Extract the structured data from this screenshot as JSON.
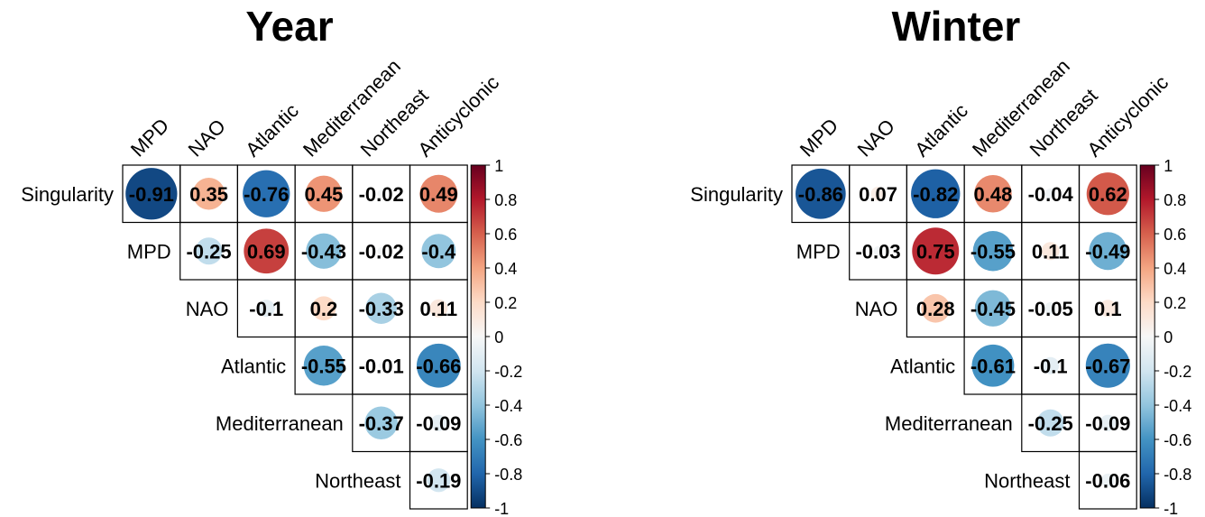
{
  "chart_data": [
    {
      "type": "heatmap",
      "title": "Year",
      "row_labels": [
        "Singularity",
        "MPD",
        "NAO",
        "Atlantic",
        "Mediterranean",
        "Northeast"
      ],
      "col_labels": [
        "MPD",
        "NAO",
        "Atlantic",
        "Mediterranean",
        "Northeast",
        "Anticyclonic"
      ],
      "values": [
        [
          -0.91,
          0.35,
          -0.76,
          0.45,
          -0.02,
          0.49
        ],
        [
          null,
          -0.25,
          0.69,
          -0.43,
          -0.02,
          -0.4
        ],
        [
          null,
          null,
          -0.1,
          0.2,
          -0.33,
          0.11
        ],
        [
          null,
          null,
          null,
          -0.55,
          -0.01,
          -0.66
        ],
        [
          null,
          null,
          null,
          null,
          -0.37,
          -0.09
        ],
        [
          null,
          null,
          null,
          null,
          null,
          -0.19
        ]
      ],
      "legend_ticks": [
        "1",
        "0.8",
        "0.6",
        "0.4",
        "0.2",
        "0",
        "-0.2",
        "-0.4",
        "-0.6",
        "-0.8",
        "-1"
      ],
      "value_range": [
        -1,
        1
      ]
    },
    {
      "type": "heatmap",
      "title": "Winter",
      "row_labels": [
        "Singularity",
        "MPD",
        "NAO",
        "Atlantic",
        "Mediterranean",
        "Northeast"
      ],
      "col_labels": [
        "MPD",
        "NAO",
        "Atlantic",
        "Mediterranean",
        "Northeast",
        "Anticyclonic"
      ],
      "values": [
        [
          -0.86,
          0.07,
          -0.82,
          0.48,
          -0.04,
          0.62
        ],
        [
          null,
          -0.03,
          0.75,
          -0.55,
          0.11,
          -0.49
        ],
        [
          null,
          null,
          0.28,
          -0.45,
          -0.05,
          0.1
        ],
        [
          null,
          null,
          null,
          -0.61,
          -0.1,
          -0.67
        ],
        [
          null,
          null,
          null,
          null,
          -0.25,
          -0.09
        ],
        [
          null,
          null,
          null,
          null,
          null,
          -0.06
        ]
      ],
      "legend_ticks": [
        "1",
        "0.8",
        "0.6",
        "0.4",
        "0.2",
        "0",
        "-0.2",
        "-0.4",
        "-0.6",
        "-0.8",
        "-1"
      ],
      "value_range": [
        -1,
        1
      ]
    }
  ],
  "colors": {
    "negative_end": "#053061",
    "neutral": "#f7f7f7",
    "positive_end": "#67001f"
  }
}
